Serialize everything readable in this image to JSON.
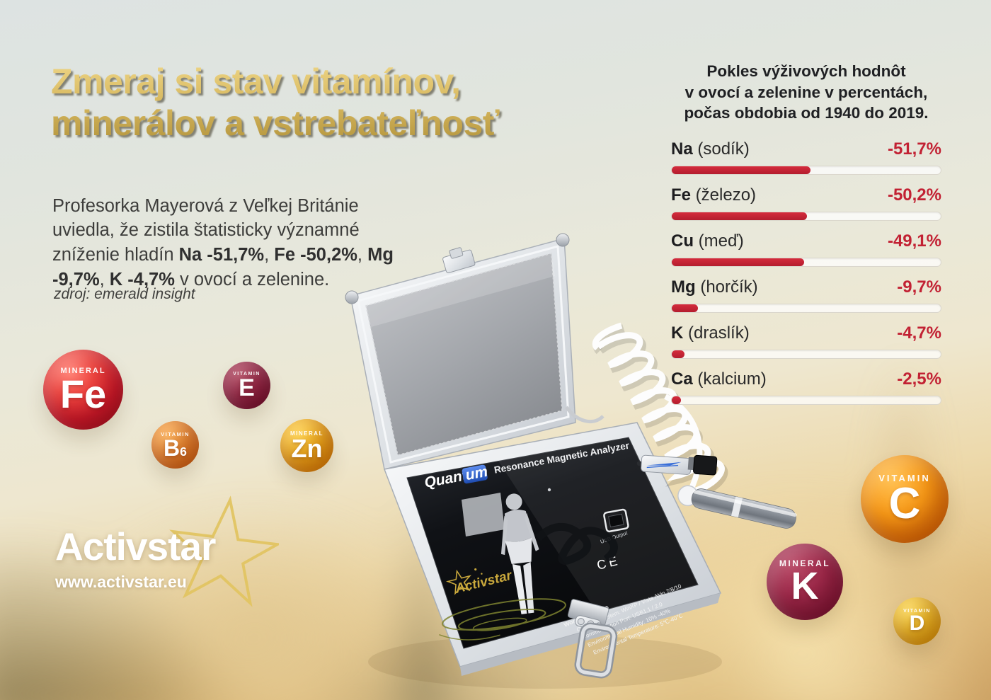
{
  "title": {
    "line1": "Zmeraj si stav vitamínov,",
    "line2": "minerálov a vstrebateľnosť"
  },
  "intro": {
    "text_start": "Profesorka Mayerová z Veľkej Británie uviedla, že zistila štatisticky významné zníženie hladín ",
    "bold_na": "Na -51,7%",
    "sep1": ", ",
    "bold_fe": "Fe -50,2%",
    "sep2": ", ",
    "bold_mg": "Mg -9,7%",
    "sep3": ", ",
    "bold_k": "K -4,7%",
    "text_end": " v ovocí a zelenine."
  },
  "source": "zdroj: emerald insight",
  "stats": {
    "heading_line1": "Pokles výživových hodnôt",
    "heading_line2": "v ovocí a zelenine v percentách,",
    "heading_line3": "počas obdobia od 1940 do 2019.",
    "rows": [
      {
        "element": "Na",
        "name": " (sodík)",
        "value": "-51,7%",
        "percent": 51.7
      },
      {
        "element": "Fe",
        "name": " (železo)",
        "value": "-50,2%",
        "percent": 50.2
      },
      {
        "element": "Cu",
        "name": " (meď)",
        "value": "-49,1%",
        "percent": 49.1
      },
      {
        "element": "Mg",
        "name": " (horčík)",
        "value": "-9,7%",
        "percent": 9.7
      },
      {
        "element": "K",
        "name": " (draslík)",
        "value": "-4,7%",
        "percent": 4.7
      },
      {
        "element": "Ca",
        "name": " (kalcium)",
        "value": "-2,5%",
        "percent": 2.5
      }
    ],
    "bar_color": "#c22133"
  },
  "chart_data": {
    "type": "bar",
    "orientation": "horizontal",
    "title": "Pokles výživových hodnôt v ovocí a zelenine v percentách, počas obdobia od 1940 do 2019.",
    "categories": [
      "Na (sodík)",
      "Fe (železo)",
      "Cu (meď)",
      "Mg (horčík)",
      "K (draslík)",
      "Ca (kalcium)"
    ],
    "values": [
      -51.7,
      -50.2,
      -49.1,
      -9.7,
      -4.7,
      -2.5
    ],
    "unit": "%",
    "xlim": [
      0,
      -100
    ],
    "bar_color": "#c22133",
    "grid": false,
    "legend": "none"
  },
  "spheres": [
    {
      "type": "MINERAL",
      "symbol": "Fe",
      "sub": "",
      "color": "#d31a2a"
    },
    {
      "type": "VITAMIN",
      "symbol": "E",
      "sub": "",
      "color": "#7b1635"
    },
    {
      "type": "VITAMIN",
      "symbol": "B",
      "sub": "6",
      "color": "#f28c2c"
    },
    {
      "type": "MINERAL",
      "symbol": "Zn",
      "sub": "",
      "color": "#f7b018"
    },
    {
      "type": "VITAMIN",
      "symbol": "C",
      "sub": "",
      "color": "#f99a17"
    },
    {
      "type": "MINERAL",
      "symbol": "K",
      "sub": "",
      "color": "#a02a4c"
    },
    {
      "type": "VITAMIN",
      "symbol": "D",
      "sub": "",
      "color": "#f7c322"
    }
  ],
  "device": {
    "brand_prefix": "Quant",
    "brand_suffix": "um",
    "product": "Resonance Magnetic Analyzer",
    "usb_label": "USB Output",
    "ce_mark": "CE",
    "work_conditions_title": "Work Conditions",
    "work_conditions": [
      "Operation System: WinXP / Vista /Win 7/8/10",
      "Communication Port: USB1.1 / 2.0",
      "Environmental Humidity: 10% -40%",
      "Environmental Temperature: 5℃-40℃"
    ],
    "panel_brand": "Activstar"
  },
  "logo": {
    "name": "Activstar",
    "website": "www.activstar.eu"
  }
}
